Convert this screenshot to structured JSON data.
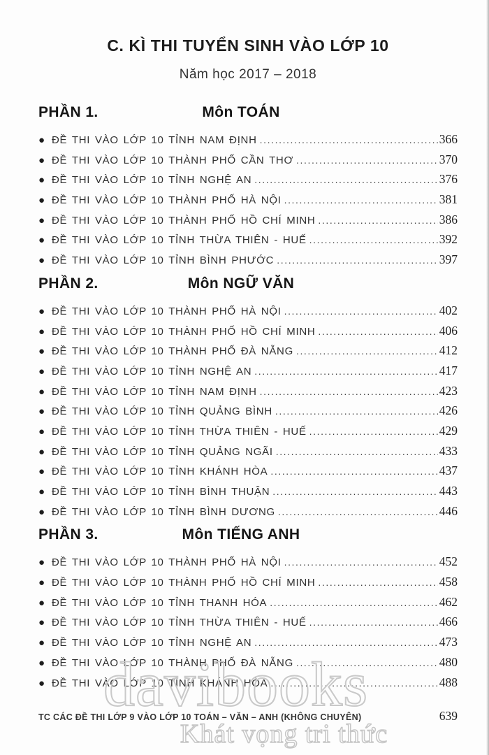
{
  "title": "C. KÌ THI TUYỂN SINH VÀO LỚP 10",
  "subtitle": "Năm học 2017 – 2018",
  "sections": [
    {
      "label": "PHẦN 1.",
      "subject": "Môn TOÁN",
      "items": [
        {
          "text": "ĐỀ THI VÀO LỚP 10 TỈNH NAM ĐỊNH",
          "page": "366"
        },
        {
          "text": "ĐỀ THI VÀO LỚP 10 THÀNH PHỐ CẦN THƠ",
          "page": "370"
        },
        {
          "text": "ĐỀ THI VÀO LỚP 10 TỈNH NGHỆ AN",
          "page": "376"
        },
        {
          "text": "ĐỀ THI VÀO LỚP 10 THÀNH PHỐ HÀ NỘI",
          "page": "381"
        },
        {
          "text": "ĐỀ THI VÀO LỚP 10 THÀNH PHỐ HỒ CHÍ MINH",
          "page": "386"
        },
        {
          "text": "ĐỀ THI VÀO LỚP 10 TỈNH THỪA THIÊN - HUẾ",
          "page": "392"
        },
        {
          "text": "ĐỀ THI VÀO LỚP 10 TỈNH BÌNH PHƯỚC",
          "page": "397"
        }
      ]
    },
    {
      "label": "PHẦN 2.",
      "subject": "Môn NGỮ VĂN",
      "items": [
        {
          "text": "ĐỀ THI VÀO LỚP 10 THÀNH PHỐ HÀ NỘI",
          "page": "402"
        },
        {
          "text": "ĐỀ THI VÀO LỚP 10 THÀNH PHỐ HỒ CHÍ MINH",
          "page": "406"
        },
        {
          "text": "ĐỀ THI VÀO LỚP 10 THÀNH PHỐ ĐÀ NẴNG",
          "page": "412"
        },
        {
          "text": "ĐỀ THI VÀO LỚP 10 TỈNH NGHỆ AN",
          "page": "417"
        },
        {
          "text": "ĐỀ THI VÀO LỚP 10 TỈNH NAM ĐỊNH",
          "page": "423"
        },
        {
          "text": "ĐỀ THI VÀO LỚP 10 TỈNH QUẢNG BÌNH",
          "page": "426"
        },
        {
          "text": "ĐỀ THI VÀO LỚP 10 TỈNH THỪA THIÊN - HUẾ",
          "page": "429"
        },
        {
          "text": "ĐỀ THI VÀO LỚP 10 TỈNH QUẢNG NGÃI",
          "page": "433"
        },
        {
          "text": "ĐỀ THI VÀO LỚP 10 TỈNH KHÁNH HÒA",
          "page": "437"
        },
        {
          "text": "ĐỀ THI VÀO LỚP 10 TỈNH BÌNH THUẬN",
          "page": "443"
        },
        {
          "text": "ĐỀ THI VÀO LỚP 10 TỈNH BÌNH DƯƠNG",
          "page": "446"
        }
      ]
    },
    {
      "label": "PHẦN 3.",
      "subject": "Môn TIẾNG ANH",
      "items": [
        {
          "text": "ĐỀ THI VÀO LỚP 10 THÀNH PHỐ HÀ NỘI",
          "page": "452"
        },
        {
          "text": "ĐỀ THI VÀO LỚP 10 THÀNH PHỐ HỒ CHÍ MINH",
          "page": "458"
        },
        {
          "text": "ĐỀ THI VÀO LỚP 10 TỈNH THANH HÓA",
          "page": "462"
        },
        {
          "text": "ĐỀ THI VÀO LỚP 10 TỈNH THỪA THIÊN - HUẾ",
          "page": "466"
        },
        {
          "text": "ĐỀ THI VÀO LỚP 10 TỈNH NGHỆ AN",
          "page": "473"
        },
        {
          "text": "ĐỀ THI VÀO LỚP 10 THÀNH PHỐ ĐÀ NẴNG",
          "page": "480"
        },
        {
          "text": "ĐỀ THI VÀO LỚP 10 TỈNH KHÁNH HÒA",
          "page": "488"
        }
      ]
    }
  ],
  "footer": {
    "text": "TC CÁC ĐỀ THI LỚP 9 VÀO LỚP 10 TOÁN – VĂN – ANH (KHÔNG CHUYÊN)",
    "page_number": "639"
  },
  "watermark": {
    "brand": "davibooks",
    "slogan": "Khát vọng tri thức"
  },
  "bullet_glyph": "●",
  "colors": {
    "ink": "#2f2f2f",
    "watermark": "#c9c9c9",
    "paper": "#fdfdfd"
  }
}
